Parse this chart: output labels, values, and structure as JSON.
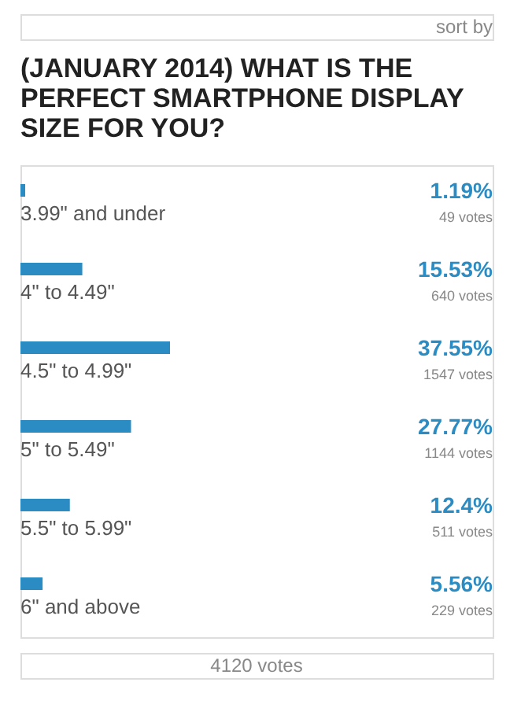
{
  "chart_data": {
    "type": "bar",
    "orientation": "horizontal",
    "title": "(JANUARY 2014) WHAT IS THE PERFECT SMARTPHONE DISPLAY SIZE FOR YOU?",
    "categories": [
      "3.99\" and under",
      "4\" to 4.49\"",
      "4.5\" to 4.99\"",
      "5\" to 5.49\"",
      "5.5\" to 5.99\"",
      "6\" and above"
    ],
    "values": [
      1.19,
      15.53,
      37.55,
      27.77,
      12.4,
      5.56
    ],
    "value_labels": [
      "1.19%",
      "15.53%",
      "37.55%",
      "27.77%",
      "12.4%",
      "5.56%"
    ],
    "color": "#2b8cc4",
    "annotations": [
      "sort by",
      "49 votes",
      "640 votes",
      "1547 votes",
      "1144 votes",
      "511 votes",
      "229 votes",
      "4120 votes"
    ]
  }
}
